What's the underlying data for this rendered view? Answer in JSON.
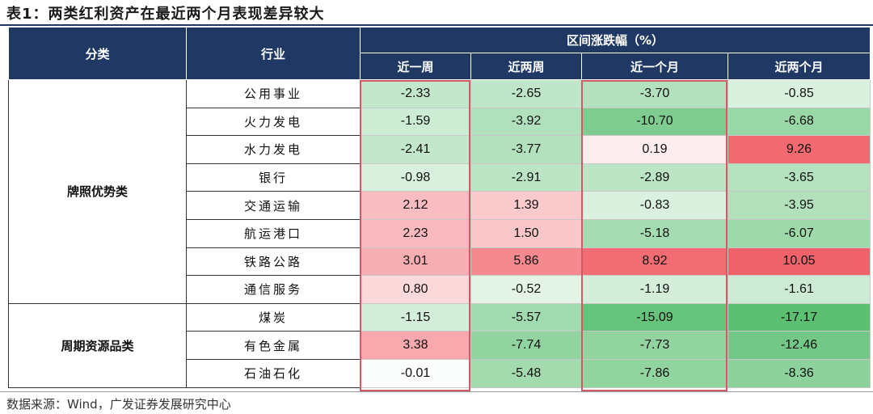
{
  "title": "表1：两类红利资产在最近两个月表现差异较大",
  "header": {
    "category": "分类",
    "industry": "行业",
    "range": "区间涨跌幅（%）",
    "periods": [
      "近一周",
      "近两周",
      "近一个月",
      "近两个月"
    ]
  },
  "groups": [
    {
      "name": "牌照优势类",
      "rows": [
        {
          "industry": "公用事业",
          "values": [
            "-2.33",
            "-2.65",
            "-3.70",
            "-0.85"
          ]
        },
        {
          "industry": "火力发电",
          "values": [
            "-1.59",
            "-3.92",
            "-10.70",
            "-6.68"
          ]
        },
        {
          "industry": "水力发电",
          "values": [
            "-2.41",
            "-3.77",
            "0.19",
            "9.26"
          ]
        },
        {
          "industry": "银行",
          "values": [
            "-0.98",
            "-2.91",
            "-2.89",
            "-3.65"
          ]
        },
        {
          "industry": "交通运输",
          "values": [
            "2.12",
            "1.39",
            "-0.83",
            "-3.95"
          ]
        },
        {
          "industry": "航运港口",
          "values": [
            "2.23",
            "1.50",
            "-5.18",
            "-6.07"
          ]
        },
        {
          "industry": "铁路公路",
          "values": [
            "3.01",
            "5.86",
            "8.92",
            "10.05"
          ]
        },
        {
          "industry": "通信服务",
          "values": [
            "0.80",
            "-0.52",
            "-1.19",
            "-1.61"
          ]
        }
      ]
    },
    {
      "name": "周期资源品类",
      "rows": [
        {
          "industry": "煤炭",
          "values": [
            "-1.15",
            "-5.57",
            "-15.09",
            "-17.17"
          ]
        },
        {
          "industry": "有色金属",
          "values": [
            "3.38",
            "-7.74",
            "-7.73",
            "-12.46"
          ]
        },
        {
          "industry": "石油石化",
          "values": [
            "-0.01",
            "-5.48",
            "-7.86",
            "-8.36"
          ]
        }
      ]
    }
  ],
  "source": "数据来源：Wind，广发证券发展研究中心",
  "colors": {
    "header_bg": "#1f3864",
    "positive": "#f0626a",
    "negative": "#5cbf72",
    "highlight_border": "#d05a66"
  }
}
